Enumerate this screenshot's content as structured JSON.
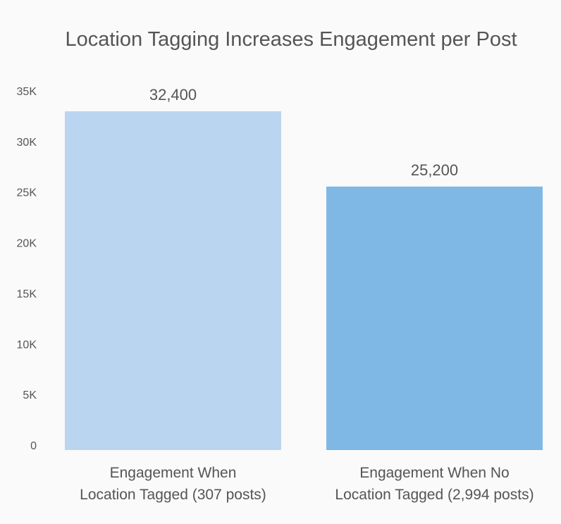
{
  "chart_data": {
    "type": "bar",
    "title": "Location Tagging Increases Engagement per Post",
    "categories": [
      [
        "Engagement When",
        "Location Tagged (307 posts)"
      ],
      [
        "Engagement When No",
        "Location Tagged (2,994 posts)"
      ]
    ],
    "values": [
      32400,
      25200
    ],
    "data_labels": [
      "32,400",
      "25,200"
    ],
    "colors": [
      "#bad5f0",
      "#7fb8e4"
    ],
    "ylim": [
      0,
      35000
    ],
    "yticks": [
      0,
      5000,
      10000,
      15000,
      20000,
      25000,
      30000,
      35000
    ],
    "ytick_labels": [
      "0",
      "5K",
      "10K",
      "15K",
      "20K",
      "25K",
      "30K",
      "35K"
    ],
    "xlabel": "",
    "ylabel": "",
    "grid": false,
    "legend": "none"
  }
}
